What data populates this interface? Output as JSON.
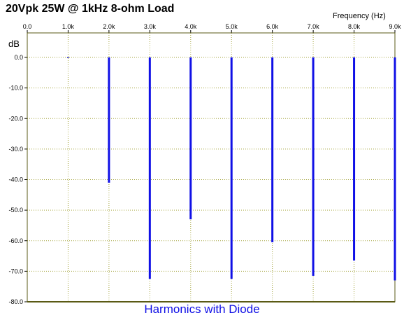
{
  "chart_data": {
    "type": "bar",
    "title": "20Vpk 25W @ 1kHz 8-ohm Load",
    "xlabel": "Frequency  (Hz)",
    "ylabel": "dB",
    "caption": "Harmonics with Diode",
    "x_ticks": [
      "0.0",
      "1.0k",
      "2.0k",
      "3.0k",
      "4.0k",
      "5.0k",
      "6.0k",
      "7.0k",
      "8.0k",
      "9.0k"
    ],
    "y_ticks": [
      "0.0",
      "-10.0",
      "-20.0",
      "-30.0",
      "-40.0",
      "-50.0",
      "-60.0",
      "-70.0",
      "-80.0"
    ],
    "xlim": [
      0,
      9000
    ],
    "ylim": [
      -80,
      0
    ],
    "x_axis_position": "top",
    "grid": true,
    "series": [
      {
        "x": [
          1000,
          2000,
          3000,
          4000,
          5000,
          6000,
          7000,
          8000,
          9000
        ],
        "values": [
          0,
          -41,
          -72.5,
          -53,
          -72.5,
          -60.5,
          -71.5,
          -66.5,
          -73
        ]
      }
    ],
    "colors": {
      "bars": "#1010e6",
      "grid": "#a6a640",
      "frame": "#5a5a14",
      "caption": "#1010e6"
    }
  }
}
